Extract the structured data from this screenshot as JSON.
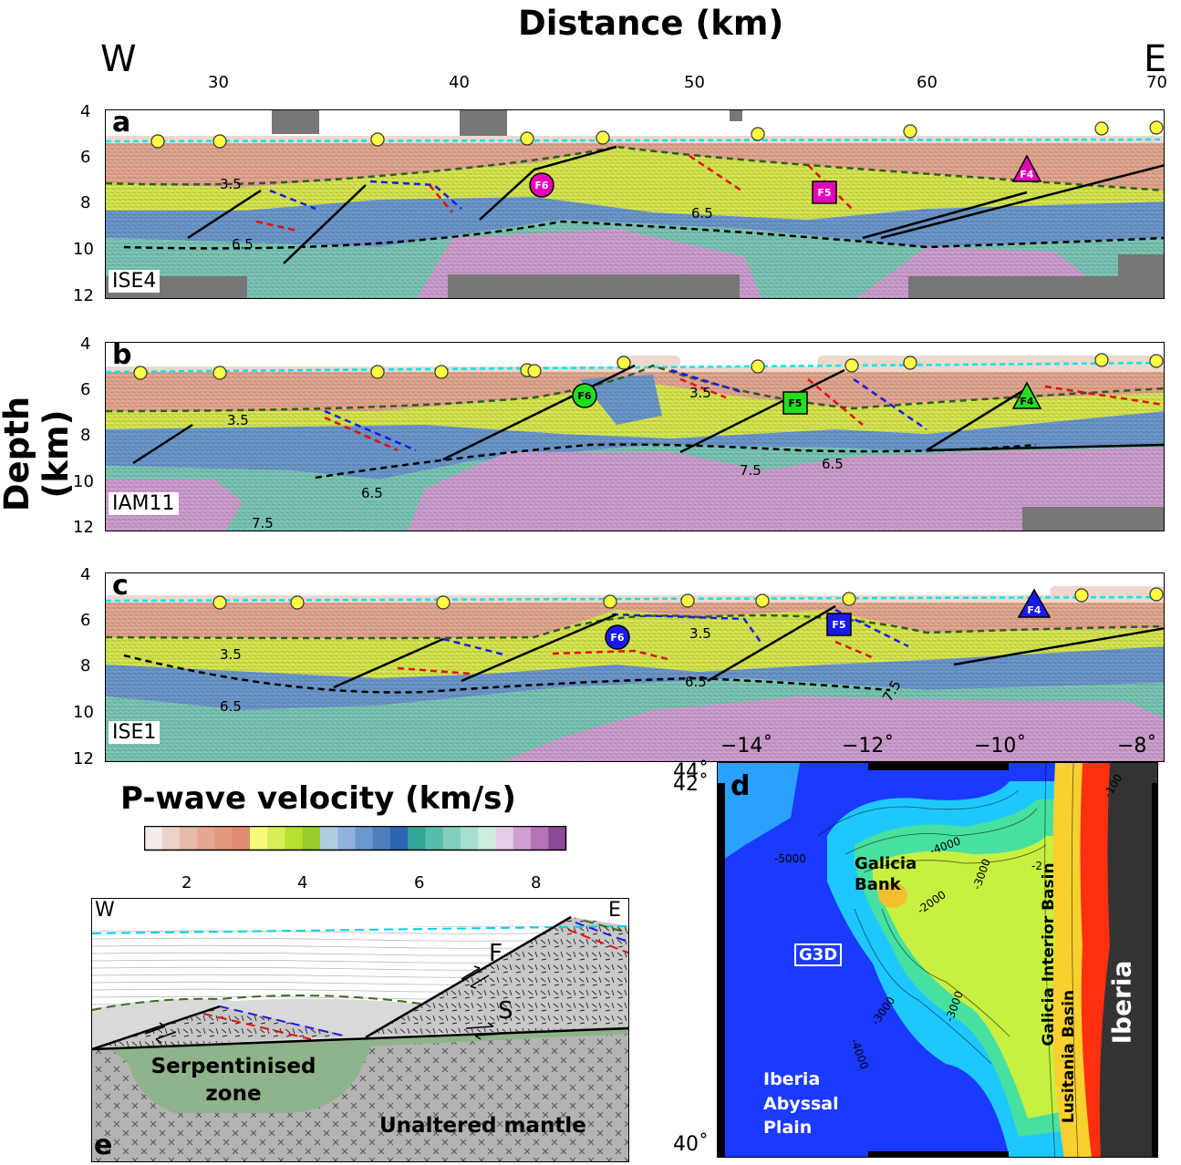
{
  "title": "Distance (km)",
  "west": "W",
  "east": "E",
  "distance_ticks": [
    "30",
    "40",
    "50",
    "60",
    "70"
  ],
  "ylabel": "Depth (km)",
  "depth_ticks": [
    "4",
    "6",
    "8",
    "10",
    "12"
  ],
  "panels": [
    {
      "letter": "a",
      "line": "ISE4",
      "contours": [
        "3.5",
        "6.5",
        "6.5"
      ],
      "markers": [
        {
          "label": "F6",
          "shape": "circle",
          "color": "#e600b8"
        },
        {
          "label": "F5",
          "shape": "square",
          "color": "#e600b8"
        },
        {
          "label": "F4",
          "shape": "triangle",
          "color": "#e600b8"
        }
      ]
    },
    {
      "letter": "b",
      "line": "IAM11",
      "contours": [
        "3.5",
        "3.5",
        "6.5",
        "6.5",
        "7.5",
        "7.5"
      ],
      "markers": [
        {
          "label": "F6",
          "shape": "circle",
          "color": "#22dd22"
        },
        {
          "label": "F5",
          "shape": "square",
          "color": "#22dd22"
        },
        {
          "label": "F4",
          "shape": "triangle",
          "color": "#22dd22"
        }
      ]
    },
    {
      "letter": "c",
      "line": "ISE1",
      "contours": [
        "3.5",
        "3.5",
        "6.5",
        "6.5",
        "7.5"
      ],
      "markers": [
        {
          "label": "F6",
          "shape": "circle",
          "color": "#1a1aee"
        },
        {
          "label": "F5",
          "shape": "square",
          "color": "#1a1aee"
        },
        {
          "label": "F4",
          "shape": "triangle",
          "color": "#1a1aee"
        }
      ]
    }
  ],
  "colorbar": {
    "title": "P-wave velocity (km/s)",
    "ticks": [
      "2",
      "4",
      "6",
      "8"
    ],
    "colors": [
      "#f3ecea",
      "#ecd2c8",
      "#e6bba8",
      "#e4a890",
      "#e2987c",
      "#e08c70",
      "#f8f87a",
      "#d8ee58",
      "#b8e030",
      "#98cc2c",
      "#b2cde0",
      "#90b3dc",
      "#6c98cc",
      "#4e7ebc",
      "#2a66b0",
      "#30a898",
      "#58bcaa",
      "#82cfbe",
      "#a8ded2",
      "#ccecde",
      "#e6cfe6",
      "#cf9fd0",
      "#b474b6",
      "#8e4a96"
    ]
  },
  "map": {
    "letter": "d",
    "lon_ticks": [
      "−14˚",
      "−12˚",
      "−10˚",
      "−8˚"
    ],
    "lat_ticks": [
      "44˚",
      "42˚",
      "40˚"
    ],
    "labels": {
      "galicia_bank": "Galicia\nBank",
      "g3d": "G3D",
      "galicia_interior_basin": "Galicia Interior Basin",
      "lusitania_basin": "Lusitania Basin",
      "iberia": "Iberia",
      "abyssal_plain": "Iberia\nAbyssal\nPlain"
    },
    "contours": [
      "-5000",
      "-4000",
      "-3000",
      "-2000",
      "-3000",
      "-3000",
      "-4000",
      "-100",
      "-2"
    ]
  },
  "schematic": {
    "letter": "e",
    "west": "W",
    "east": "E",
    "fault_label": "F",
    "detachment_label": "S",
    "serpentinised": "Serpentinised\nzone",
    "mantle": "Unaltered mantle"
  }
}
